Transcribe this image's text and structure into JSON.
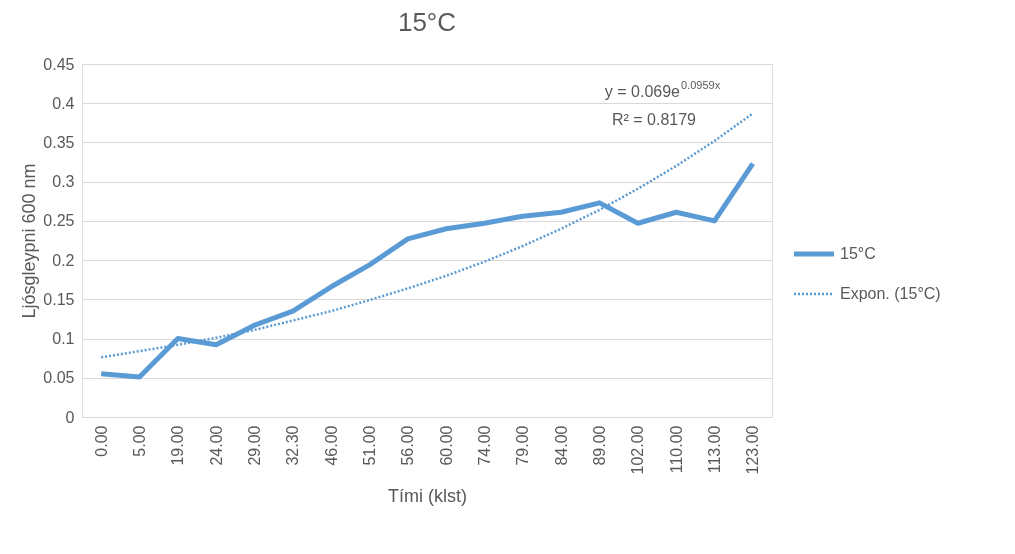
{
  "chart_data": {
    "type": "line",
    "title": "15°C",
    "xlabel": "Tími (klst)",
    "ylabel": "Ljósgleypni 600 nm",
    "categories": [
      "0.00",
      "5.00",
      "19.00",
      "24.00",
      "29.00",
      "32.30",
      "46.00",
      "51.00",
      "56.00",
      "60.00",
      "74.00",
      "79.00",
      "84.00",
      "89.00",
      "102.00",
      "110.00",
      "113.00",
      "123.00"
    ],
    "series": [
      {
        "name": "15°C",
        "color": "#5b9bd5",
        "line_style": "solid",
        "values": [
          0.055,
          0.051,
          0.1,
          0.092,
          0.117,
          0.135,
          0.166,
          0.194,
          0.227,
          0.24,
          0.247,
          0.256,
          0.261,
          0.273,
          0.247,
          0.261,
          0.25,
          0.323
        ]
      },
      {
        "name": "Expon. (15°C)",
        "color": "#5b9bd5",
        "line_style": "dotted",
        "values": [
          0.076,
          0.084,
          0.092,
          0.101,
          0.111,
          0.123,
          0.135,
          0.149,
          0.164,
          0.18,
          0.198,
          0.218,
          0.24,
          0.264,
          0.291,
          0.32,
          0.352,
          0.387
        ]
      }
    ],
    "ylim": [
      0,
      0.45
    ],
    "yticks": [
      0,
      0.05,
      0.1,
      0.15,
      0.2,
      0.25,
      0.3,
      0.35,
      0.4,
      0.45
    ],
    "grid": "y",
    "legend": "right",
    "marker": "none",
    "annotations": [
      "y = 0.069e$^{0.0959x}$",
      "R² = 0.8179"
    ]
  }
}
